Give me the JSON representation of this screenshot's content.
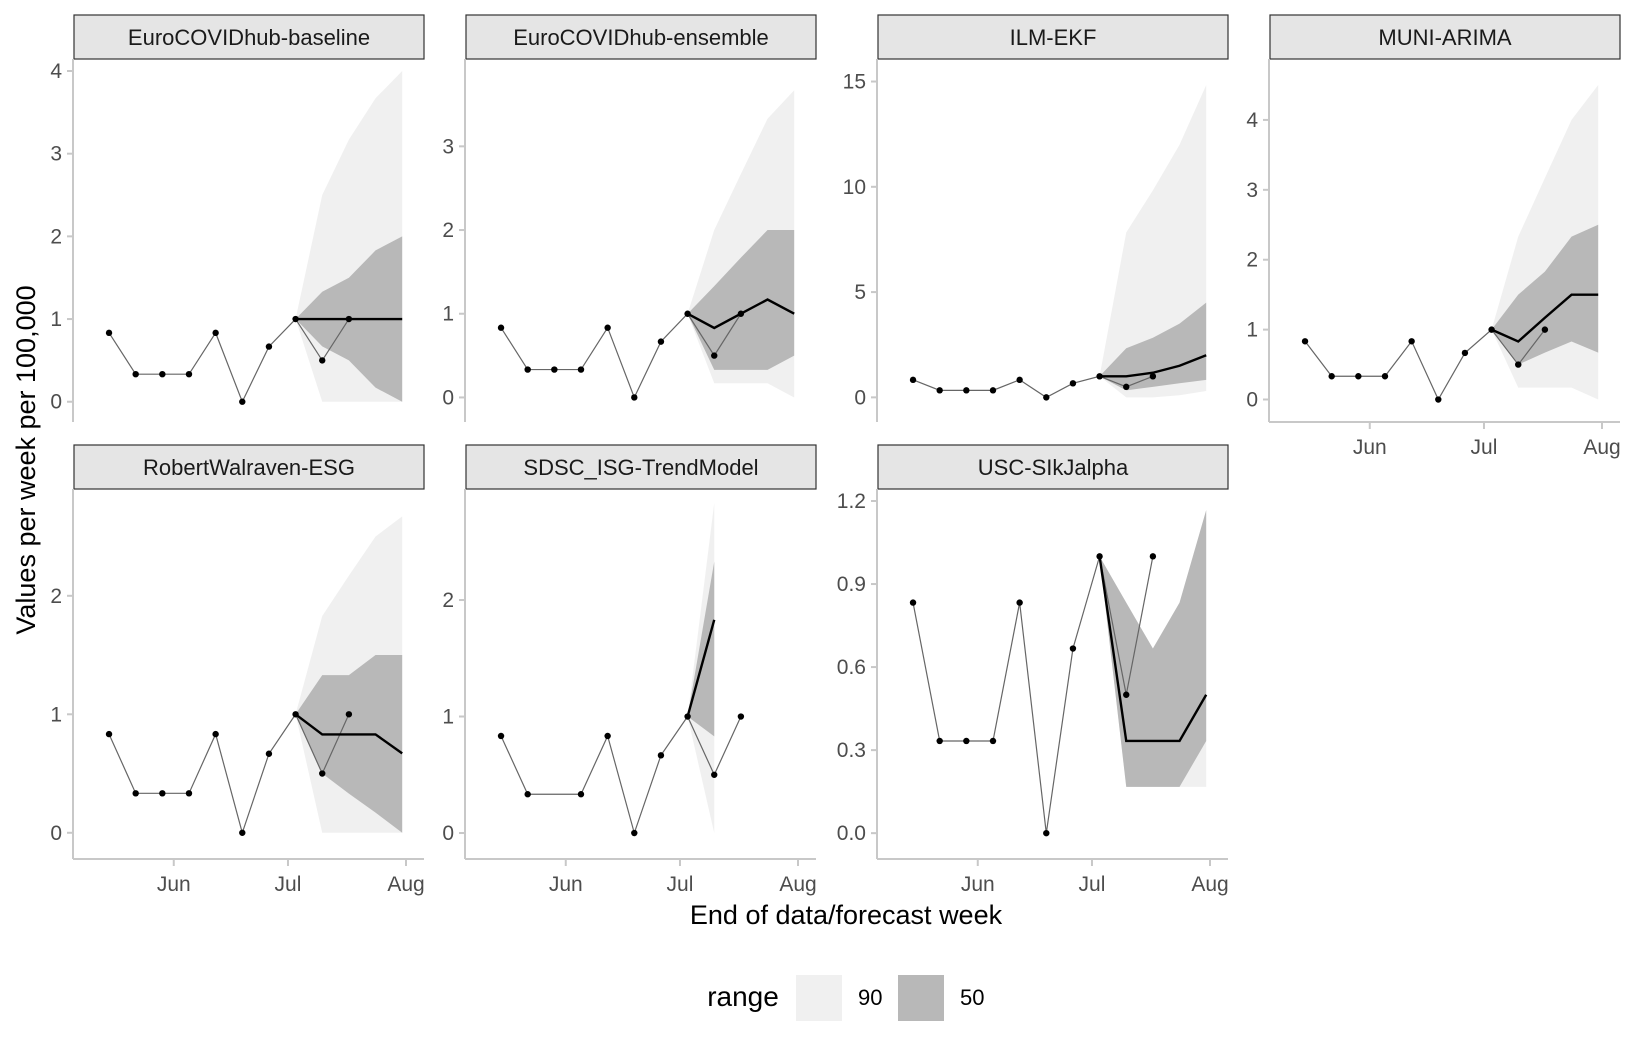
{
  "chart_data": {
    "type": "line",
    "xlabel": "End of data/forecast week",
    "ylabel": "Values per week per 100,000",
    "x_ticks": [
      "Jun",
      "Jul",
      "Aug"
    ],
    "x_tick_dates": [
      "2021-06-01",
      "2021-07-01",
      "2021-08-01"
    ],
    "xlim": [
      "2021-05-10",
      "2021-08-01"
    ],
    "grid": false,
    "legend": {
      "title": "range",
      "position": "bottom",
      "entries": [
        {
          "label": "90",
          "color": "#f0f0f0"
        },
        {
          "label": "50",
          "color": "#b8b8b8"
        }
      ]
    },
    "colors": {
      "band90": "#f0f0f0",
      "band50": "#b8b8b8",
      "forecast": "#000000",
      "observed": "#666666",
      "strip": "#e5e5e5",
      "axis": "#c8c8c8"
    },
    "observed_dates": [
      "2021-05-15",
      "2021-05-22",
      "2021-05-29",
      "2021-06-05",
      "2021-06-12",
      "2021-06-19",
      "2021-06-26",
      "2021-07-03",
      "2021-07-10",
      "2021-07-17"
    ],
    "forecast_dates": [
      "2021-07-03",
      "2021-07-10",
      "2021-07-17",
      "2021-07-24",
      "2021-07-31"
    ],
    "panels": [
      {
        "name": "EuroCOVIDhub-baseline",
        "yticks": [
          0,
          1,
          2,
          3,
          4
        ],
        "ylim": [
          -0.1,
          4.0
        ],
        "observed": [
          0.833,
          0.333,
          0.333,
          0.333,
          0.833,
          0.0,
          0.667,
          1.0,
          0.5,
          1.0
        ],
        "median": [
          1.0,
          1.0,
          1.0,
          1.0,
          1.0
        ],
        "lower90": [
          1.0,
          0.0,
          0.0,
          0.0,
          0.0
        ],
        "upper90": [
          1.0,
          2.5,
          3.17,
          3.67,
          4.0
        ],
        "lower50": [
          1.0,
          0.67,
          0.5,
          0.17,
          0.0
        ],
        "upper50": [
          1.0,
          1.33,
          1.5,
          1.83,
          2.0
        ]
      },
      {
        "name": "EuroCOVIDhub-ensemble",
        "yticks": [
          0,
          1,
          2,
          3
        ],
        "ylim": [
          -0.15,
          3.9
        ],
        "observed": [
          0.833,
          0.333,
          0.333,
          0.333,
          0.833,
          0.0,
          0.667,
          1.0,
          0.5,
          1.0
        ],
        "median": [
          1.0,
          0.83,
          1.0,
          1.17,
          1.0
        ],
        "lower90": [
          1.0,
          0.17,
          0.17,
          0.17,
          0.0
        ],
        "upper90": [
          1.0,
          2.0,
          2.67,
          3.33,
          3.67
        ],
        "lower50": [
          1.0,
          0.33,
          0.33,
          0.33,
          0.5
        ],
        "upper50": [
          1.0,
          1.33,
          1.67,
          2.0,
          2.0
        ]
      },
      {
        "name": "ILM-EKF",
        "yticks": [
          0,
          5,
          10,
          15
        ],
        "ylim": [
          -0.6,
          15.5
        ],
        "observed": [
          0.833,
          0.333,
          0.333,
          0.333,
          0.833,
          0.0,
          0.667,
          1.0,
          0.5,
          1.0
        ],
        "median": [
          1.0,
          1.0,
          1.17,
          1.5,
          2.0
        ],
        "lower90": [
          1.0,
          0.0,
          0.0,
          0.1,
          0.3
        ],
        "upper90": [
          1.0,
          7.83,
          9.83,
          12.0,
          14.83
        ],
        "lower50": [
          1.0,
          0.33,
          0.5,
          0.67,
          0.83
        ],
        "upper50": [
          1.0,
          2.33,
          2.83,
          3.5,
          4.5
        ]
      },
      {
        "name": "MUNI-ARIMA",
        "yticks": [
          0,
          1,
          2,
          3,
          4
        ],
        "ylim": [
          -0.15,
          4.7
        ],
        "observed": [
          0.833,
          0.333,
          0.333,
          0.333,
          0.833,
          0.0,
          0.667,
          1.0,
          0.5,
          1.0
        ],
        "median": [
          1.0,
          0.83,
          1.17,
          1.5,
          1.5
        ],
        "lower90": [
          1.0,
          0.17,
          0.17,
          0.17,
          0.0
        ],
        "upper90": [
          1.0,
          2.33,
          3.17,
          4.0,
          4.5
        ],
        "lower50": [
          1.0,
          0.5,
          0.67,
          0.83,
          0.67
        ],
        "upper50": [
          1.0,
          1.5,
          1.83,
          2.33,
          2.5
        ]
      },
      {
        "name": "RobertWalraven-ESG",
        "yticks": [
          0,
          1,
          2
        ],
        "ylim": [
          -0.12,
          2.8
        ],
        "observed": [
          0.833,
          0.333,
          0.333,
          0.333,
          0.833,
          0.0,
          0.667,
          1.0,
          0.5,
          1.0
        ],
        "median": [
          1.0,
          0.83,
          0.83,
          0.83,
          0.67
        ],
        "lower90": [
          1.0,
          0.0,
          0.0,
          0.0,
          0.0
        ],
        "upper90": [
          1.0,
          1.83,
          2.17,
          2.5,
          2.67
        ],
        "lower50": [
          1.0,
          0.5,
          0.33,
          0.17,
          0.0
        ],
        "upper50": [
          1.0,
          1.33,
          1.33,
          1.5,
          1.5
        ]
      },
      {
        "name": "SDSC_ISG-TrendModel",
        "yticks": [
          0,
          1,
          2
        ],
        "ylim": [
          -0.12,
          2.85
        ],
        "observed": [
          0.833,
          0.333,
          null,
          0.333,
          0.833,
          0.0,
          0.667,
          1.0,
          0.5,
          1.0
        ],
        "median": [
          1.0,
          1.83
        ],
        "lower90": [
          1.0,
          0.0
        ],
        "upper90": [
          1.0,
          2.83
        ],
        "lower50": [
          1.0,
          0.83
        ],
        "upper50": [
          1.0,
          2.33
        ]
      },
      {
        "name": "USC-SIkJalpha",
        "yticks": [
          0.0,
          0.3,
          0.6,
          0.9,
          1.2
        ],
        "ytick_labels": [
          "0.0",
          "0.3",
          "0.6",
          "0.9",
          "1.2"
        ],
        "ylim": [
          -0.05,
          1.2
        ],
        "observed": [
          0.833,
          0.333,
          0.333,
          0.333,
          0.833,
          0.0,
          0.667,
          1.0,
          0.5,
          1.0
        ],
        "median": [
          1.0,
          0.333,
          0.333,
          0.333,
          0.5
        ],
        "lower90": [
          1.0,
          0.167,
          0.167,
          0.167,
          0.167
        ],
        "upper90": [
          1.0,
          0.833,
          0.667,
          0.833,
          1.167
        ],
        "lower50": [
          1.0,
          0.167,
          0.167,
          0.167,
          0.333
        ],
        "upper50": [
          1.0,
          0.833,
          0.667,
          0.833,
          1.167
        ]
      }
    ]
  }
}
